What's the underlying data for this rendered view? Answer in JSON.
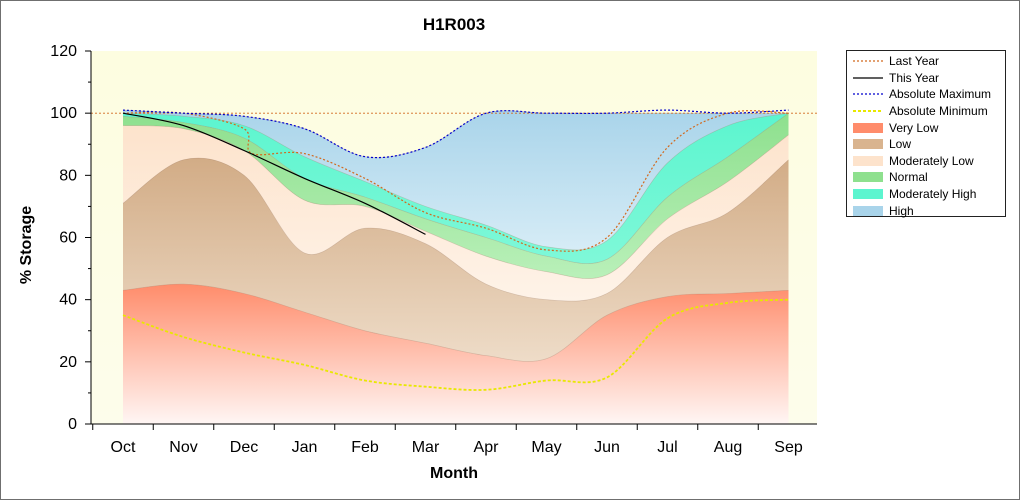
{
  "chart_data": {
    "type": "area",
    "title": "H1R003",
    "xlabel": "Month",
    "ylabel": "% Storage",
    "ylim": [
      0,
      120
    ],
    "yticks": [
      0,
      20,
      40,
      60,
      80,
      100,
      120
    ],
    "categories": [
      "Oct",
      "Nov",
      "Dec",
      "Jan",
      "Feb",
      "Mar",
      "Apr",
      "May",
      "Jun",
      "Jul",
      "Aug",
      "Sep"
    ],
    "grid": false,
    "legend_position": "right",
    "reference_line": 100,
    "band_boundaries": {
      "x": [
        "Oct",
        "Nov",
        "Dec",
        "Jan",
        "Feb",
        "Mar",
        "Apr",
        "May",
        "Jun",
        "Jul",
        "Aug",
        "Sep"
      ],
      "very_low_top": [
        43,
        45,
        42,
        36,
        30,
        26,
        22,
        21,
        35,
        41,
        42,
        43
      ],
      "low_top": [
        71,
        85,
        80,
        55,
        63,
        58,
        45,
        40,
        42,
        60,
        68,
        85
      ],
      "moderately_low_top": [
        96,
        95,
        88,
        72,
        70,
        62,
        54,
        49,
        48,
        66,
        78,
        93
      ],
      "normal_top": [
        99,
        97,
        92,
        79,
        73,
        66,
        60,
        54,
        53,
        73,
        86,
        100
      ],
      "moderately_high_top": [
        100,
        99,
        96,
        86,
        78,
        70,
        64,
        57,
        59,
        84,
        96,
        100
      ],
      "high_top": [
        101,
        100,
        99,
        95,
        86,
        89,
        100,
        100,
        100,
        100,
        100,
        100
      ]
    },
    "series": [
      {
        "name": "Last Year",
        "color": "#d2691e",
        "style": "dotted",
        "x": [
          "Oct",
          "Nov",
          "Dec",
          "Dec",
          "Jan",
          "Feb",
          "Mar",
          "Apr",
          "May",
          "Jun",
          "Jul",
          "Aug",
          "Sep"
        ],
        "values": [
          100,
          100,
          95,
          87,
          87,
          79,
          68,
          63,
          56,
          60,
          89,
          100,
          100
        ]
      },
      {
        "name": "This Year",
        "color": "#000000",
        "style": "solid",
        "x": [
          "Oct",
          "Nov",
          "Dec",
          "Jan",
          "Feb",
          "Mar"
        ],
        "values": [
          100,
          96,
          88,
          79,
          71,
          61
        ]
      },
      {
        "name": "Absolute Maximum",
        "color": "#0000cd",
        "style": "dotted",
        "x": [
          "Oct",
          "Nov",
          "Dec",
          "Jan",
          "Feb",
          "Mar",
          "Apr",
          "May",
          "Jun",
          "Jul",
          "Aug",
          "Sep"
        ],
        "values": [
          101,
          100,
          99,
          95,
          86,
          89,
          100,
          100,
          100,
          101,
          100,
          101
        ]
      },
      {
        "name": "Absolute Minimum",
        "color": "#e8e800",
        "style": "dotted",
        "x": [
          "Oct",
          "Nov",
          "Dec",
          "Jan",
          "Feb",
          "Mar",
          "Apr",
          "May",
          "Jun",
          "Jul",
          "Aug",
          "Sep"
        ],
        "values": [
          35,
          28,
          23,
          19,
          14,
          12,
          11,
          14,
          15,
          34,
          39,
          40
        ]
      }
    ],
    "legend": [
      {
        "label": "Last Year",
        "kind": "line",
        "color": "#d2691e",
        "dash": "2,2"
      },
      {
        "label": "This Year",
        "kind": "line",
        "color": "#000000",
        "dash": ""
      },
      {
        "label": "Absolute Maximum",
        "kind": "line",
        "color": "#0000cd",
        "dash": "2,2"
      },
      {
        "label": "Absolute Minimum",
        "kind": "line",
        "color": "#e8e800",
        "dash": "3,2"
      },
      {
        "label": "Very Low",
        "kind": "fill",
        "color": "#ff8c6b"
      },
      {
        "label": "Low",
        "kind": "fill",
        "color": "#d9b48f"
      },
      {
        "label": "Moderately Low",
        "kind": "fill",
        "color": "#fde3cc"
      },
      {
        "label": "Normal",
        "kind": "fill",
        "color": "#8ee08e"
      },
      {
        "label": "Moderately High",
        "kind": "fill",
        "color": "#5cf5cf"
      },
      {
        "label": "High",
        "kind": "fill",
        "color": "#a9d4ea"
      }
    ]
  }
}
